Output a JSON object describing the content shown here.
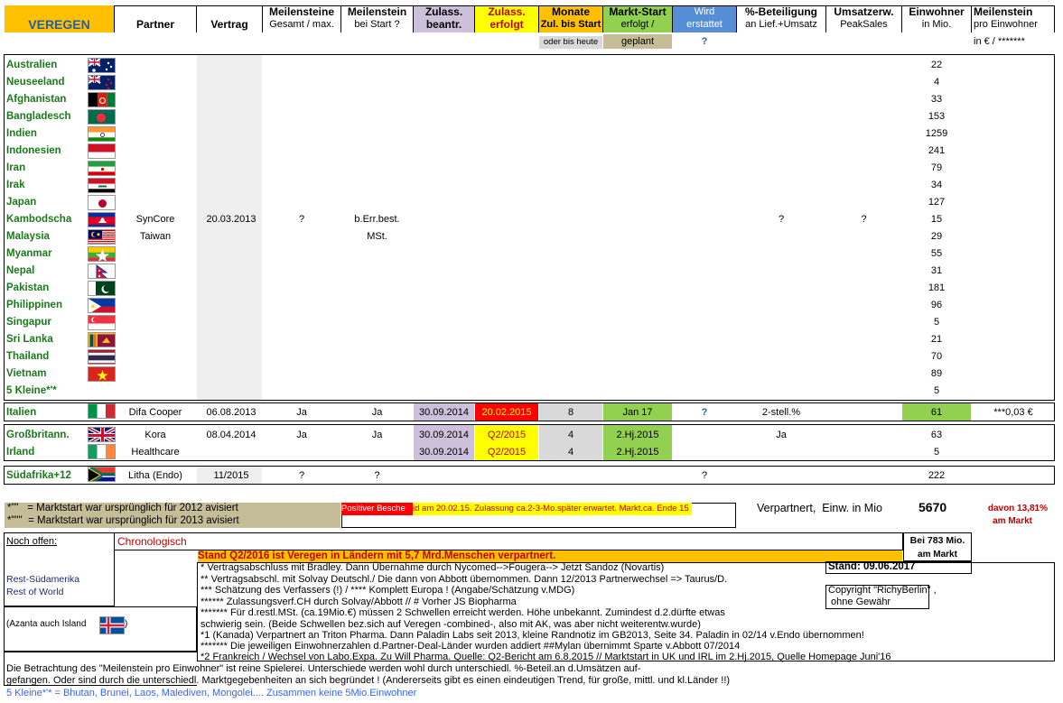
{
  "header": {
    "brand": "VEREGEN",
    "partner": "Partner",
    "vertrag": "Vertrag",
    "meil_gesamt_1": "Meilensteine",
    "meil_gesamt_2": "Gesamt / max.",
    "meil_start_1": "Meilenstein",
    "meil_start_2": "bei Start ?",
    "zul_beantr_1": "Zulass.",
    "zul_beantr_2": "beantr.",
    "zul_erfolgt_1": "Zulass.",
    "zul_erfolgt_2": "erfolgt",
    "monate_1": "Monate",
    "monate_2": "Zul. bis Start",
    "monate_3": "oder bis heute",
    "markt_1": "Markt-Start",
    "markt_2": "erfolgt /",
    "markt_3": "geplant",
    "wird_1": "Wird",
    "wird_2": "erstattet",
    "wird_3": "?",
    "beteil_1": "%-Beteiligung",
    "beteil_2": "an Lief.+Umsatz",
    "umsatz_1": "Umsatzerw.",
    "umsatz_2": "PeakSales",
    "einw_1": "Einwohner",
    "einw_2": "in Mio.",
    "meilpe_1": "Meilenstein",
    "meilpe_2": "pro Einwohner",
    "meilpe_3": "in € / *******"
  },
  "asia": [
    {
      "name": "Australien",
      "pop": "22"
    },
    {
      "name": "Neuseeland",
      "pop": "4"
    },
    {
      "name": "Afghanistan",
      "pop": "33"
    },
    {
      "name": "Bangladesch",
      "pop": "153"
    },
    {
      "name": "Indien",
      "pop": "1259"
    },
    {
      "name": "Indonesien",
      "pop": "241"
    },
    {
      "name": "Iran",
      "pop": "79"
    },
    {
      "name": "Irak",
      "pop": "34"
    },
    {
      "name": "Japan",
      "pop": "127"
    },
    {
      "name": "Kambodscha",
      "pop": "15"
    },
    {
      "name": "Malaysia",
      "pop": "29"
    },
    {
      "name": "Myanmar",
      "pop": "55"
    },
    {
      "name": "Nepal",
      "pop": "31"
    },
    {
      "name": "Pakistan",
      "pop": "181"
    },
    {
      "name": "Philippinen",
      "pop": "96"
    },
    {
      "name": "Singapur",
      "pop": "5"
    },
    {
      "name": "Sri Lanka",
      "pop": "21"
    },
    {
      "name": "Thailand",
      "pop": "70"
    },
    {
      "name": "Vietnam",
      "pop": "89"
    },
    {
      "name": "5 Kleine*'*",
      "pop": "5"
    }
  ],
  "asia_deal": {
    "partner_1": "SynCore",
    "partner_2": "Taiwan",
    "vertrag": "20.03.2013",
    "meil_gesamt": "?",
    "meil_start_1": "b.Err.best.",
    "meil_start_2": "MSt.",
    "beteil": "?",
    "umsatz": "?"
  },
  "italien": {
    "name": "Italien",
    "partner": "Difa Cooper",
    "vertrag": "06.08.2013",
    "meil_gesamt": "Ja",
    "meil_start": "Ja",
    "zul_beantr": "30.09.2014",
    "zul_erfolgt": "20.02.2015",
    "monate": "8",
    "markt": "Jan 17",
    "wird": "?",
    "beteil": "2-stell.%",
    "pop": "61",
    "meilpe": "***0,03 €"
  },
  "uk": {
    "name": "Großbritann.",
    "name2": "Irland",
    "partner_1": "Kora",
    "partner_2": "Healthcare",
    "vertrag": "08.04.2014",
    "meil_gesamt": "Ja",
    "meil_start": "Ja",
    "zul_beantr_1": "30.09.2014",
    "zul_beantr_2": "30.09.2014",
    "zul_erfolgt_1": "Q2/2015",
    "zul_erfolgt_2": "Q2/2015",
    "monate_1": "4",
    "monate_2": "4",
    "markt_1": "2.Hj.2015",
    "markt_2": "2.Hj.2015",
    "beteil": "Ja",
    "pop_1": "63",
    "pop_2": "5"
  },
  "sa": {
    "name": "Südafrika+12",
    "partner": "Litha (Endo)",
    "vertrag": "11/2015",
    "meil_gesamt": "?",
    "meil_start": "?",
    "wird": "?",
    "pop": "222"
  },
  "footnotes": {
    "fn1": "*\"\"   = Marktstart war ursprünglich für 2012 avisiert",
    "fn2": "*\"\"\"  = Marktstart war ursprünglich für 2013 avisiert",
    "positive": "Positiver Besche",
    "positive_note": "id am 20.02.15. Zulassung ca.2-3-Mo.später erwartet. Markt.ca. Ende 15",
    "verpartnert": "Verpartnert,  Einw. in Mio",
    "total": "5670",
    "davon_1": "davon 13,81%",
    "davon_2": "am Markt"
  },
  "lower": {
    "noch_offen": "Noch offen:",
    "chrono": "Chronologisch",
    "bei_783_1": "Bei 783 Mio.",
    "bei_783_2": "am Markt",
    "rest_1": "Rest-Südamerika",
    "rest_2": "Rest of World",
    "azanta": "(Azanta auch Island",
    "azanta_end": ")",
    "stand_banner": "Stand Q2/2016 ist Veregen in Ländern mit 5,7 Mrd.Menschen verpartnert.",
    "stand_date": "Stand: 09.06.2017",
    "copyright_1": "Copyright \"RichyBerlin\" ,",
    "copyright_2": " ohne Gewähr",
    "notes": [
      "* Vertragsabschluss mit Bradley. Dann Übernahme durch Nycomed-->Fougera--> Jetzt Sandoz (Novartis)",
      "** Vertragsabschl. mit Solvay Deutschl./ Die dann von Abbott übernommen. Dann 12/2013 Partnerwechsel => Taurus/D.",
      "*** Schätzung des Verfassers (!)   /    **** Komplett Europa ! (Angabe/Schätzung v.MDG)",
      "****** Zulassungsverf.CH durch Solvay/Abbott          //      # Vorher JS Biopharma",
      "******* Für d.restl.MSt. (ca.19Mio.€) müssen 2 Schwellen erreicht werden. Höhe unbekannt. Zumindest d.2.dürfte etwas",
      "schwierig sein. (Beide Schwellen bez.sich auf Veregen -combined-, also mit AK, was aber nicht weiterentw.wurde)",
      "*1 (Kanada) Verpartnert an Triton Pharma. Dann Paladin Labs seit 2013, kleine Randnotiz im GB2013, Seite 34. Paladin in 02/14 v.Endo übernommen!",
      "******* Die jeweiligen Einwohnerzahlen d.Partner-Deal-Länder wurden addiert                 ##Mylan übernimmt Sparte v.Abbott 07/2014",
      "*2 Frankreich / Wechsel von Labo.Expa. Zu Will Pharma. Quelle: Q2-Bericht am 6.8.2015           // Marktstart in UK und IRL im 2.Hj.2015, Quelle Homepage Juni'16"
    ],
    "bottom_1": "Die Betrachtung des \"Meilenstein pro Einwohner\" ist reine Spielerei. Unterschiede werden wohl durch unterschiedl. %-Beteil.an d.Umsätzen auf-",
    "bottom_2": "gefangen. Oder sind durch die unterschiedl. Marktgegebenheiten an sich begründet ! (Andererseits gibt es einen eindeutigen Trend, für große, mittl. und kl.Länder !!)",
    "bottom_3": "5 Kleine*'* = Bhutan, Brunei, Laos, Malediven, Mongolei.... Zusammen keine 5Mio.Einwohner"
  },
  "colors": {
    "brand_bg": "#ffc000",
    "brand_text": "#1f5fae",
    "purple": "#ccc0da",
    "yellow": "#ffff00",
    "orange": "#ffc000",
    "green": "#92d050",
    "blue": "#558ed5",
    "red": "#ff0000",
    "tan": "#c4bd97",
    "grey": "#d9d9d9"
  }
}
